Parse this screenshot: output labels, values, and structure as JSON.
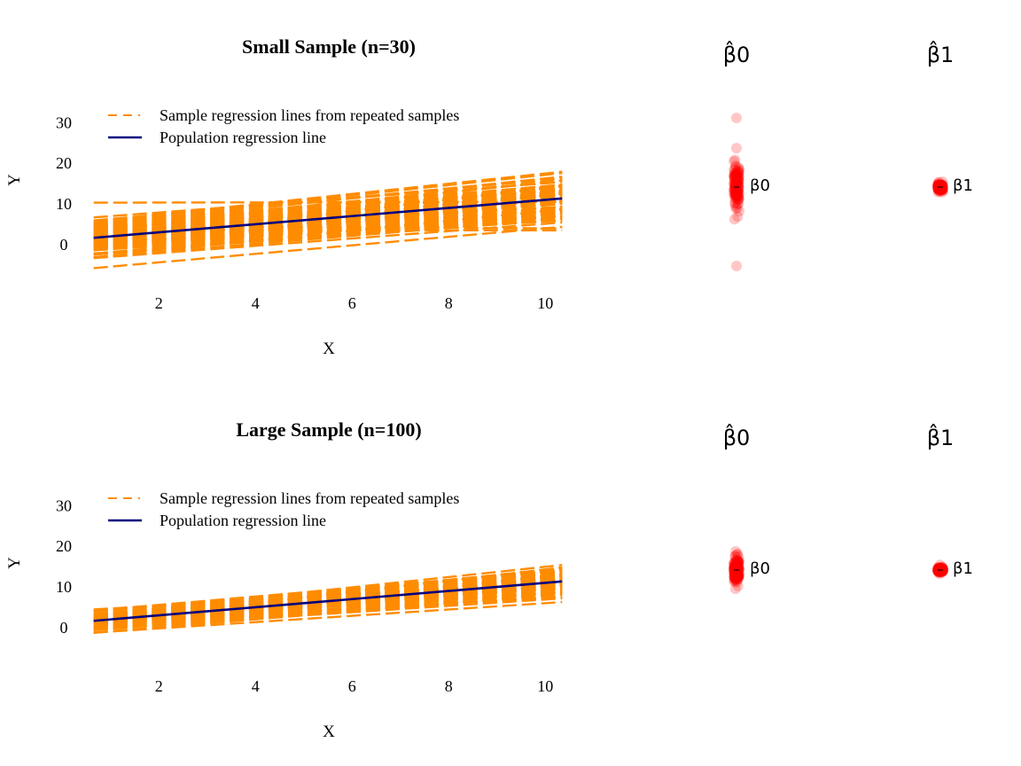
{
  "colors": {
    "sample_line": "#FF8C00",
    "population_line": "#00007F",
    "estimate_points": "#FF0000",
    "text": "#000000"
  },
  "chart_data": [
    {
      "type": "line",
      "title": "Small Sample (n=30)",
      "xlabel": "X",
      "ylabel": "Y",
      "xlim": [
        0.6,
        10.4
      ],
      "ylim": [
        -9,
        36
      ],
      "xticks": [
        "2",
        "4",
        "6",
        "8",
        "10"
      ],
      "yticks": [
        "0",
        "10",
        "20",
        "30"
      ],
      "x_tick_values": [
        2,
        4,
        6,
        8,
        10
      ],
      "y_tick_values": [
        0,
        10,
        20,
        30
      ],
      "legend": {
        "placement": "top-left",
        "entries": [
          "Sample regression lines from repeated samples",
          "Population regression line"
        ]
      },
      "population_line": {
        "intercept": 1,
        "slope": 1
      },
      "sample_lines": {
        "count": 100,
        "intercept_range": [
          -9,
          33
        ],
        "slope_range": [
          0.55,
          1.45
        ]
      },
      "estimates": [
        {
          "label": "β̂0",
          "point_label": "β0",
          "style": "jitter-strip",
          "center": 13,
          "spread": 5
        },
        {
          "label": "β̂1",
          "point_label": "β1",
          "style": "compact-cluster",
          "center": 13,
          "spread": 1.3
        }
      ]
    },
    {
      "type": "line",
      "title": "Large Sample (n=100)",
      "xlabel": "X",
      "ylabel": "Y",
      "xlim": [
        0.6,
        10.4
      ],
      "ylim": [
        -9,
        36
      ],
      "xticks": [
        "2",
        "4",
        "6",
        "8",
        "10"
      ],
      "yticks": [
        "0",
        "10",
        "20",
        "30"
      ],
      "x_tick_values": [
        2,
        4,
        6,
        8,
        10
      ],
      "y_tick_values": [
        0,
        10,
        20,
        30
      ],
      "legend": {
        "placement": "top-left",
        "entries": [
          "Sample regression lines from repeated samples",
          "Population regression line"
        ]
      },
      "population_line": {
        "intercept": 1,
        "slope": 1
      },
      "sample_lines": {
        "count": 100,
        "intercept_range": [
          -3,
          4
        ],
        "slope_range": [
          0.6,
          1.45
        ]
      },
      "estimates": [
        {
          "label": "β̂0",
          "point_label": "β0",
          "style": "jitter-strip",
          "center": 13,
          "spread": 2.8
        },
        {
          "label": "β̂1",
          "point_label": "β1",
          "style": "compact-cluster",
          "center": 13,
          "spread": 0.9
        }
      ]
    }
  ]
}
